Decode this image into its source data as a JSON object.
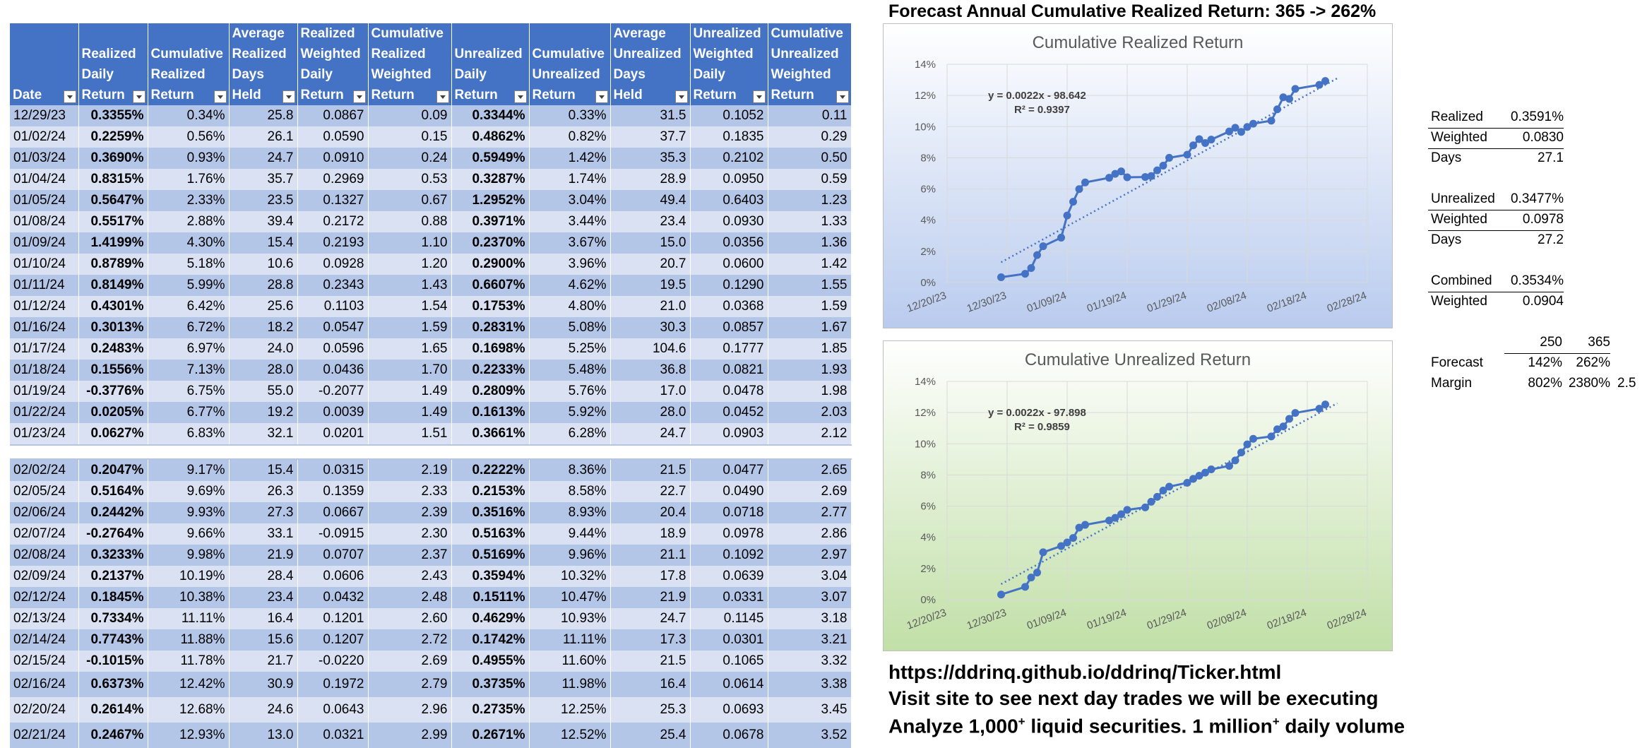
{
  "table": {
    "headers": [
      "Date",
      "Realized\nDaily\nReturn",
      "Cumulative\nRealized\nReturn",
      "Average\nRealized\nDays\nHeld",
      "Realized\nWeighted\nDaily\nReturn",
      "Cumulative\nRealized\nWeighted\nReturn",
      "Unrealized\nDaily\nReturn",
      "Cumulative\nUnrealized\nReturn",
      "Average\nUnrealized\nDays\nHeld",
      "Unrealized\nWeighted\nDaily\nReturn",
      "Cumulative\nUnrealized\nWeighted\nReturn"
    ],
    "rows_top": [
      [
        "12/29/23",
        "0.3355%",
        "0.34%",
        "25.8",
        "0.0867",
        "0.09",
        "0.3344%",
        "0.33%",
        "31.5",
        "0.1052",
        "0.11"
      ],
      [
        "01/02/24",
        "0.2259%",
        "0.56%",
        "26.1",
        "0.0590",
        "0.15",
        "0.4862%",
        "0.82%",
        "37.7",
        "0.1835",
        "0.29"
      ],
      [
        "01/03/24",
        "0.3690%",
        "0.93%",
        "24.7",
        "0.0910",
        "0.24",
        "0.5949%",
        "1.42%",
        "35.3",
        "0.2102",
        "0.50"
      ],
      [
        "01/04/24",
        "0.8315%",
        "1.76%",
        "35.7",
        "0.2969",
        "0.53",
        "0.3287%",
        "1.74%",
        "28.9",
        "0.0950",
        "0.59"
      ],
      [
        "01/05/24",
        "0.5647%",
        "2.33%",
        "23.5",
        "0.1327",
        "0.67",
        "1.2952%",
        "3.04%",
        "49.4",
        "0.6403",
        "1.23"
      ],
      [
        "01/08/24",
        "0.5517%",
        "2.88%",
        "39.4",
        "0.2172",
        "0.88",
        "0.3971%",
        "3.44%",
        "23.4",
        "0.0930",
        "1.33"
      ],
      [
        "01/09/24",
        "1.4199%",
        "4.30%",
        "15.4",
        "0.2193",
        "1.10",
        "0.2370%",
        "3.67%",
        "15.0",
        "0.0356",
        "1.36"
      ],
      [
        "01/10/24",
        "0.8789%",
        "5.18%",
        "10.6",
        "0.0928",
        "1.20",
        "0.2900%",
        "3.96%",
        "20.7",
        "0.0600",
        "1.42"
      ],
      [
        "01/11/24",
        "0.8149%",
        "5.99%",
        "28.8",
        "0.2343",
        "1.43",
        "0.6607%",
        "4.62%",
        "19.5",
        "0.1290",
        "1.55"
      ],
      [
        "01/12/24",
        "0.4301%",
        "6.42%",
        "25.6",
        "0.1103",
        "1.54",
        "0.1753%",
        "4.80%",
        "21.0",
        "0.0368",
        "1.59"
      ],
      [
        "01/16/24",
        "0.3013%",
        "6.72%",
        "18.2",
        "0.0547",
        "1.59",
        "0.2831%",
        "5.08%",
        "30.3",
        "0.0857",
        "1.67"
      ],
      [
        "01/17/24",
        "0.2483%",
        "6.97%",
        "24.0",
        "0.0596",
        "1.65",
        "0.1698%",
        "5.25%",
        "104.6",
        "0.1777",
        "1.85"
      ],
      [
        "01/18/24",
        "0.1556%",
        "7.13%",
        "28.0",
        "0.0436",
        "1.70",
        "0.2233%",
        "5.48%",
        "36.8",
        "0.0821",
        "1.93"
      ],
      [
        "01/19/24",
        "-0.3776%",
        "6.75%",
        "55.0",
        "-0.2077",
        "1.49",
        "0.2809%",
        "5.76%",
        "17.0",
        "0.0478",
        "1.98"
      ],
      [
        "01/22/24",
        "0.0205%",
        "6.77%",
        "19.2",
        "0.0039",
        "1.49",
        "0.1613%",
        "5.92%",
        "28.0",
        "0.0452",
        "2.03"
      ],
      [
        "01/23/24",
        "0.0627%",
        "6.83%",
        "32.1",
        "0.0201",
        "1.51",
        "0.3661%",
        "6.28%",
        "24.7",
        "0.0903",
        "2.12"
      ]
    ],
    "rows_bottom": [
      [
        "02/02/24",
        "0.2047%",
        "9.17%",
        "15.4",
        "0.0315",
        "2.19",
        "0.2222%",
        "8.36%",
        "21.5",
        "0.0477",
        "2.65"
      ],
      [
        "02/05/24",
        "0.5164%",
        "9.69%",
        "26.3",
        "0.1359",
        "2.33",
        "0.2153%",
        "8.58%",
        "22.7",
        "0.0490",
        "2.69"
      ],
      [
        "02/06/24",
        "0.2442%",
        "9.93%",
        "27.3",
        "0.0667",
        "2.39",
        "0.3516%",
        "8.93%",
        "20.4",
        "0.0718",
        "2.77"
      ],
      [
        "02/07/24",
        "-0.2764%",
        "9.66%",
        "33.1",
        "-0.0915",
        "2.30",
        "0.5163%",
        "9.44%",
        "18.9",
        "0.0978",
        "2.86"
      ],
      [
        "02/08/24",
        "0.3233%",
        "9.98%",
        "21.9",
        "0.0707",
        "2.37",
        "0.5169%",
        "9.96%",
        "21.1",
        "0.1092",
        "2.97"
      ],
      [
        "02/09/24",
        "0.2137%",
        "10.19%",
        "28.4",
        "0.0606",
        "2.43",
        "0.3594%",
        "10.32%",
        "17.8",
        "0.0639",
        "3.04"
      ],
      [
        "02/12/24",
        "0.1845%",
        "10.38%",
        "23.4",
        "0.0432",
        "2.48",
        "0.1511%",
        "10.47%",
        "21.9",
        "0.0331",
        "3.07"
      ],
      [
        "02/13/24",
        "0.7334%",
        "11.11%",
        "16.4",
        "0.1201",
        "2.60",
        "0.4629%",
        "10.93%",
        "24.7",
        "0.1145",
        "3.18"
      ],
      [
        "02/14/24",
        "0.7743%",
        "11.88%",
        "15.6",
        "0.1207",
        "2.72",
        "0.1742%",
        "11.11%",
        "17.3",
        "0.0301",
        "3.21"
      ],
      [
        "02/15/24",
        "-0.1015%",
        "11.78%",
        "21.7",
        "-0.0220",
        "2.69",
        "0.4955%",
        "11.60%",
        "21.5",
        "0.1065",
        "3.32"
      ],
      [
        "02/16/24",
        "0.6373%",
        "12.42%",
        "30.9",
        "0.1972",
        "2.79",
        "0.3735%",
        "11.98%",
        "16.4",
        "0.0614",
        "3.38"
      ],
      [
        "02/20/24",
        "0.2614%",
        "12.68%",
        "24.6",
        "0.0643",
        "2.96",
        "0.2735%",
        "12.25%",
        "25.3",
        "0.0693",
        "3.45"
      ],
      [
        "02/21/24",
        "0.2467%",
        "12.93%",
        "13.0",
        "0.0321",
        "2.99",
        "0.2671%",
        "12.52%",
        "25.4",
        "0.0678",
        "3.52"
      ]
    ]
  },
  "forecast_title": "Forecast Annual Cumulative Realized Return: 365 -> 262%",
  "stats": {
    "realized_label": "Realized",
    "realized_value": "0.3591%",
    "r_weighted_label": "Weighted",
    "r_weighted_value": "0.0830",
    "r_days_label": "Days",
    "r_days_value": "27.1",
    "unrealized_label": "Unrealized",
    "unrealized_value": "0.3477%",
    "u_weighted_label": "Weighted",
    "u_weighted_value": "0.0978",
    "u_days_label": "Days",
    "u_days_value": "27.2",
    "combined_label": "Combined",
    "combined_value": "0.3534%",
    "c_weighted_label": "Weighted",
    "c_weighted_value": "0.0904",
    "col_250": "250",
    "col_365": "365",
    "forecast_label": "Forecast",
    "forecast_250": "142%",
    "forecast_365": "262%",
    "margin_label": "Margin",
    "margin_250": "802%",
    "margin_365": "2380%",
    "margin_extra": "2.5"
  },
  "footer": {
    "url": "https://ddrinq.github.io/ddrinq/Ticker.html",
    "line2": "Visit site to see next day trades we will be executing",
    "line3_a": "Analyze 1,000",
    "line3_sup1": "+",
    "line3_b": " liquid securities.  1 million",
    "line3_sup2": "+",
    "line3_c": " daily volume"
  },
  "chart_data": [
    {
      "type": "scatter",
      "title": "Cumulative Realized Return",
      "x_ticks": [
        "12/20/23",
        "12/30/23",
        "01/09/24",
        "01/19/24",
        "01/29/24",
        "02/08/24",
        "02/18/24",
        "02/28/24"
      ],
      "y_ticks": [
        "0%",
        "2%",
        "4%",
        "6%",
        "8%",
        "10%",
        "12%",
        "14%"
      ],
      "ylim": [
        0,
        14
      ],
      "trendline": {
        "equation": "y = 0.0022x - 98.642",
        "r2": "R² = 0.9397",
        "style": "dotted linear",
        "from": [
          1,
          1.3
        ],
        "to": [
          57,
          13.1
        ]
      },
      "color": "#4472C4",
      "points": [
        [
          "12/29/23",
          0.34
        ],
        [
          "01/02/24",
          0.56
        ],
        [
          "01/03/24",
          0.93
        ],
        [
          "01/04/24",
          1.76
        ],
        [
          "01/05/24",
          2.33
        ],
        [
          "01/08/24",
          2.88
        ],
        [
          "01/09/24",
          4.3
        ],
        [
          "01/10/24",
          5.18
        ],
        [
          "01/11/24",
          5.99
        ],
        [
          "01/12/24",
          6.42
        ],
        [
          "01/16/24",
          6.72
        ],
        [
          "01/17/24",
          6.97
        ],
        [
          "01/18/24",
          7.13
        ],
        [
          "01/19/24",
          6.75
        ],
        [
          "01/22/24",
          6.77
        ],
        [
          "01/23/24",
          6.83
        ],
        [
          "01/24/24",
          7.2
        ],
        [
          "01/25/24",
          7.5
        ],
        [
          "01/26/24",
          8.0
        ],
        [
          "01/29/24",
          8.2
        ],
        [
          "01/30/24",
          8.8
        ],
        [
          "01/31/24",
          9.2
        ],
        [
          "02/01/24",
          8.95
        ],
        [
          "02/02/24",
          9.17
        ],
        [
          "02/05/24",
          9.69
        ],
        [
          "02/06/24",
          9.93
        ],
        [
          "02/07/24",
          9.66
        ],
        [
          "02/08/24",
          9.98
        ],
        [
          "02/09/24",
          10.19
        ],
        [
          "02/12/24",
          10.38
        ],
        [
          "02/13/24",
          11.11
        ],
        [
          "02/14/24",
          11.88
        ],
        [
          "02/15/24",
          11.78
        ],
        [
          "02/16/24",
          12.42
        ],
        [
          "02/20/24",
          12.68
        ],
        [
          "02/21/24",
          12.93
        ]
      ]
    },
    {
      "type": "scatter",
      "title": "Cumulative Unrealized Return",
      "x_ticks": [
        "12/20/23",
        "12/30/23",
        "01/09/24",
        "01/19/24",
        "01/29/24",
        "02/08/24",
        "02/18/24",
        "02/28/24"
      ],
      "y_ticks": [
        "0%",
        "2%",
        "4%",
        "6%",
        "8%",
        "10%",
        "12%",
        "14%"
      ],
      "ylim": [
        0,
        14
      ],
      "trendline": {
        "equation": "y = 0.0022x - 97.898",
        "r2": "R² = 0.9859",
        "style": "dotted linear",
        "from": [
          1,
          1.0
        ],
        "to": [
          57,
          12.6
        ]
      },
      "color": "#4472C4",
      "points": [
        [
          "12/29/23",
          0.33
        ],
        [
          "01/02/24",
          0.82
        ],
        [
          "01/03/24",
          1.42
        ],
        [
          "01/04/24",
          1.74
        ],
        [
          "01/05/24",
          3.04
        ],
        [
          "01/08/24",
          3.44
        ],
        [
          "01/09/24",
          3.67
        ],
        [
          "01/10/24",
          3.96
        ],
        [
          "01/11/24",
          4.62
        ],
        [
          "01/12/24",
          4.8
        ],
        [
          "01/16/24",
          5.08
        ],
        [
          "01/17/24",
          5.25
        ],
        [
          "01/18/24",
          5.48
        ],
        [
          "01/19/24",
          5.76
        ],
        [
          "01/22/24",
          5.92
        ],
        [
          "01/23/24",
          6.28
        ],
        [
          "01/24/24",
          6.6
        ],
        [
          "01/25/24",
          7.0
        ],
        [
          "01/26/24",
          7.25
        ],
        [
          "01/29/24",
          7.5
        ],
        [
          "01/30/24",
          7.75
        ],
        [
          "01/31/24",
          7.95
        ],
        [
          "02/01/24",
          8.15
        ],
        [
          "02/02/24",
          8.36
        ],
        [
          "02/05/24",
          8.58
        ],
        [
          "02/06/24",
          8.93
        ],
        [
          "02/07/24",
          9.44
        ],
        [
          "02/08/24",
          9.96
        ],
        [
          "02/09/24",
          10.32
        ],
        [
          "02/12/24",
          10.47
        ],
        [
          "02/13/24",
          10.93
        ],
        [
          "02/14/24",
          11.11
        ],
        [
          "02/15/24",
          11.6
        ],
        [
          "02/16/24",
          11.98
        ],
        [
          "02/20/24",
          12.25
        ],
        [
          "02/21/24",
          12.52
        ]
      ]
    }
  ]
}
